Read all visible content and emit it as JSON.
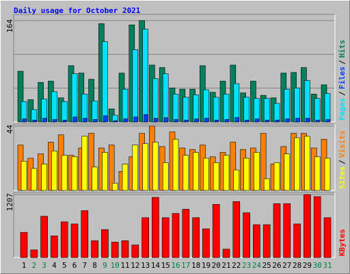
{
  "chart_data": {
    "type": "bar",
    "title": "Daily usage for October 2021",
    "separator": "/",
    "categories": [
      "1",
      "2",
      "3",
      "4",
      "5",
      "6",
      "7",
      "8",
      "9",
      "10",
      "11",
      "12",
      "13",
      "14",
      "15",
      "16",
      "17",
      "18",
      "19",
      "20",
      "21",
      "22",
      "23",
      "24",
      "25",
      "26",
      "27",
      "28",
      "29",
      "30",
      "31"
    ],
    "category_colors": [
      "#000000",
      "#008040",
      "#008040",
      "#000000",
      "#000000",
      "#000000",
      "#000000",
      "#000000",
      "#008040",
      "#008040",
      "#000000",
      "#000000",
      "#000000",
      "#000000",
      "#000000",
      "#008040",
      "#008040",
      "#000000",
      "#000000",
      "#000000",
      "#000000",
      "#000000",
      "#008040",
      "#008040",
      "#000000",
      "#000000",
      "#000000",
      "#000000",
      "#000000",
      "#008040",
      "#008040"
    ],
    "panels": [
      {
        "ylim": [
          0,
          164
        ],
        "yticks": [
          164
        ],
        "series": [
          {
            "name": "Hits",
            "color": "#00805c",
            "values": [
              82,
              36,
              64,
              66,
              39,
              91,
              79,
              69,
              159,
              21,
              79,
              157,
              164,
              92,
              88,
              55,
              53,
              53,
              91,
              48,
              66,
              92,
              47,
              66,
              43,
              39,
              79,
              80,
              88,
              45,
              60
            ]
          },
          {
            "name": "Pages",
            "color": "#00e0ff",
            "values": [
              33,
              20,
              37,
              49,
              33,
              78,
              45,
              34,
              130,
              11,
              53,
              117,
              150,
              70,
              78,
              45,
              40,
              44,
              52,
              40,
              45,
              62,
              40,
              38,
              38,
              30,
              53,
              55,
              67,
              38,
              46
            ]
          },
          {
            "name": "Files",
            "color": "#0040ff",
            "values": [
              5,
              3,
              6,
              4,
              3,
              8,
              6,
              4,
              10,
              2,
              5,
              8,
              12,
              6,
              7,
              4,
              3,
              5,
              6,
              3,
              4,
              7,
              3,
              5,
              3,
              3,
              5,
              6,
              6,
              3,
              4
            ]
          }
        ],
        "legend_order": [
          1,
          2,
          0
        ]
      },
      {
        "ylim": [
          0,
          44
        ],
        "yticks": [
          44
        ],
        "series": [
          {
            "name": "Visits",
            "color": "#ff8000",
            "values": [
              31,
              22,
              25,
              33,
              38,
              24,
              29,
              39,
              29,
              31,
              13,
              23,
              39,
              44,
              30,
              40,
              29,
              28,
              31,
              23,
              26,
              33,
              28,
              29,
              39,
              18,
              30,
              39,
              39,
              29,
              35
            ]
          },
          {
            "name": "Sites",
            "color": "#ffff00",
            "values": [
              20,
              15,
              18,
              27,
              24,
              23,
              37,
              16,
              26,
              5,
              18,
              31,
              32,
              33,
              19,
              35,
              24,
              26,
              22,
              19,
              24,
              14,
              22,
              26,
              8,
              19,
              25,
              36,
              37,
              23,
              22
            ]
          }
        ],
        "legend_order": [
          1,
          0
        ]
      },
      {
        "ylim": [
          0,
          1207
        ],
        "yticks": [
          1207
        ],
        "series": [
          {
            "name": "KBytes",
            "color": "#ff0000",
            "values": [
              483,
              148,
              791,
              416,
              684,
              644,
              899,
              322,
              536,
              295,
              322,
              241,
              764,
              1153,
              764,
              845,
              925,
              764,
              550,
              1019,
              161,
              1073,
              858,
              630,
              630,
              1033,
              1033,
              644,
              1207,
              1167,
              764
            ]
          }
        ],
        "legend_order": [
          0
        ]
      }
    ]
  }
}
